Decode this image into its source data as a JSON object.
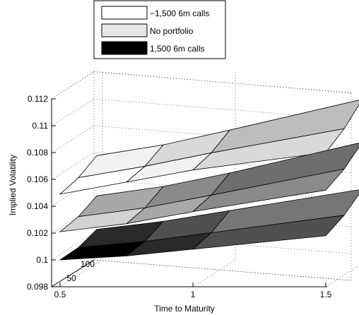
{
  "chart_data": {
    "type": "surface3d",
    "title": "",
    "xlabel": "Time to Maturity",
    "ylabel": "",
    "zlabel": "Implied Volatility",
    "zlim": [
      0.098,
      0.112
    ],
    "z_ticks": [
      "0.098",
      "0.1",
      "0.102",
      "0.104",
      "0.106",
      "0.108",
      "0.11",
      "0.112"
    ],
    "x_ticks": [
      {
        "value": 0.5,
        "label": "0.5"
      },
      {
        "value": 1,
        "label": "1"
      },
      {
        "value": 1.5,
        "label": "1.5"
      }
    ],
    "depth_ticks": [
      "50",
      "100"
    ],
    "grid": true,
    "legend_position": "top",
    "series": [
      {
        "name": "−1,500 6m calls",
        "color": "#ffffff",
        "x": [
          0.5,
          0.75,
          1.0,
          1.5
        ],
        "front": [
          0.1049,
          0.1058,
          0.1067,
          0.108
        ],
        "back": [
          0.1063,
          0.1071,
          0.1082,
          0.1105
        ]
      },
      {
        "name": "No portfolio",
        "color": "#e6e6e6",
        "x": [
          0.5,
          0.75,
          1.0,
          1.5
        ],
        "front": [
          0.1021,
          0.1027,
          0.1036,
          0.1052
        ],
        "back": [
          0.1033,
          0.104,
          0.105,
          0.1073
        ]
      },
      {
        "name": "1,500 6m calls",
        "color": "#000000",
        "x": [
          0.5,
          0.75,
          1.0,
          1.5
        ],
        "front": [
          0.1,
          0.1003,
          0.1008,
          0.1018
        ],
        "back": [
          0.1008,
          0.1014,
          0.1022,
          0.1038
        ]
      }
    ]
  }
}
